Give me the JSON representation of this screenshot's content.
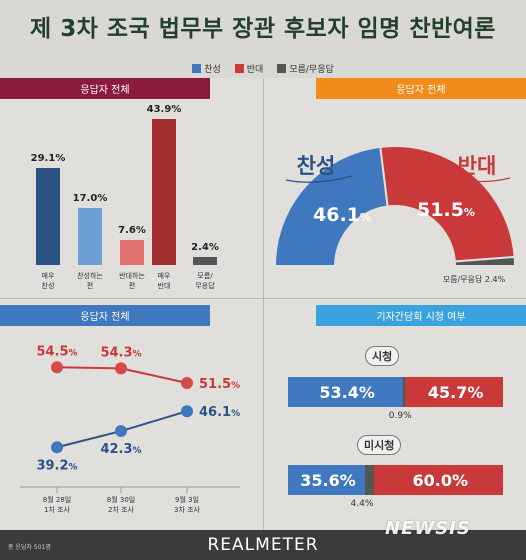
{
  "title": "제 3차 조국 법무부 장관 후보자 임명 찬반여론",
  "legend": [
    {
      "label": "찬성",
      "color": "#3f78be"
    },
    {
      "label": "반대",
      "color": "#c9393a"
    },
    {
      "label": "모름/무응답",
      "color": "#555555"
    }
  ],
  "panel1": {
    "header": "응답자 전체",
    "header_color": "#8b1b3c"
  },
  "panel2": {
    "header": "응답자 전체",
    "header_color": "#f28b1a"
  },
  "panel3": {
    "header": "응답자 전체",
    "header_color": "#3f78be"
  },
  "panel4": {
    "header": "기자간담회 시청 여부",
    "header_color": "#3aa3dd"
  },
  "footer": {
    "note": "총 응답자 501명",
    "brand": "REALMETER",
    "watermark": "NEWSIS"
  },
  "chart_data": [
    {
      "type": "bar",
      "categories": [
        "매우\n찬성",
        "찬성하는\n편",
        "반대하는\n편",
        "매우\n반대",
        "모름/\n무응답"
      ],
      "values": [
        29.1,
        17.0,
        7.6,
        43.9,
        2.4
      ],
      "value_labels": [
        "29.1%",
        "17.0%",
        "7.6%",
        "43.9%",
        "2.4%"
      ],
      "colors": [
        "#2c5286",
        "#6d9fd4",
        "#e0716d",
        "#a32d2e",
        "#555555"
      ]
    },
    {
      "type": "pie",
      "labels": [
        "찬성",
        "반대",
        "모름/무응답"
      ],
      "values": [
        46.1,
        51.5,
        2.4
      ],
      "value_labels": [
        "46.1",
        "51.5",
        "2.4%"
      ],
      "unit": "%",
      "colors": [
        "#3f78be",
        "#c9393a",
        "#555555"
      ]
    },
    {
      "type": "line",
      "x": [
        "8월 28일\n1차 조사",
        "8월 30일\n2차 조사",
        "9월 3일\n3차 조사"
      ],
      "series": [
        {
          "name": "반대",
          "values": [
            54.5,
            54.3,
            51.5
          ],
          "labels": [
            "54.5",
            "54.3",
            "51.5"
          ],
          "color": "#c9393a"
        },
        {
          "name": "찬성",
          "values": [
            39.2,
            42.3,
            46.1
          ],
          "labels": [
            "39.2",
            "42.3",
            "46.1"
          ],
          "color": "#2c5286"
        }
      ],
      "unit": "%"
    },
    {
      "type": "bar",
      "stacked": true,
      "categories": [
        "시청",
        "미시청"
      ],
      "series": [
        {
          "name": "찬성",
          "values": [
            53.4,
            35.6
          ],
          "labels": [
            "53.4%",
            "35.6%"
          ],
          "color": "#3f78be"
        },
        {
          "name": "모름/무응답",
          "values": [
            0.9,
            4.4
          ],
          "labels": [
            "0.9%",
            "4.4%"
          ],
          "color": "#555555"
        },
        {
          "name": "반대",
          "values": [
            45.7,
            60.0
          ],
          "labels": [
            "45.7%",
            "60.0%"
          ],
          "color": "#c9393a"
        }
      ]
    }
  ]
}
